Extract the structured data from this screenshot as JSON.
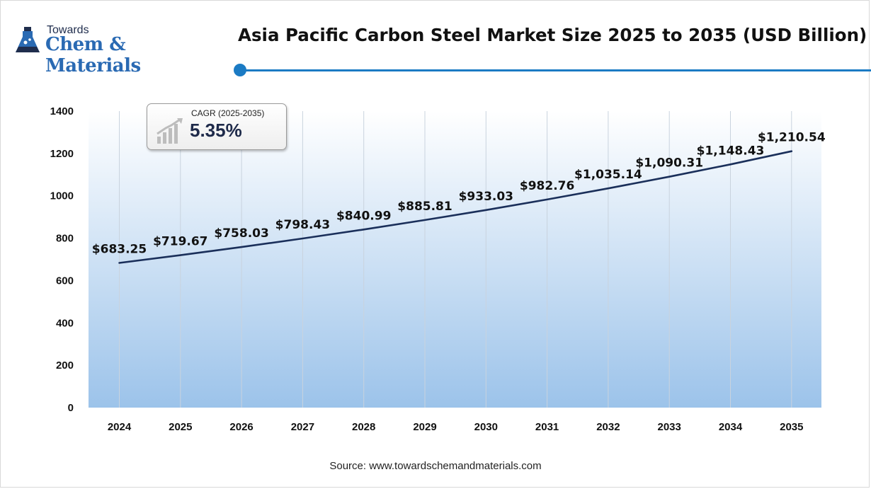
{
  "logo": {
    "line1": "Towards",
    "line2": "Chem & Materials"
  },
  "title": "Asia Pacific Carbon Steel Market Size 2025 to 2035 (USD Billion)",
  "cagr": {
    "label": "CAGR (2025-2035)",
    "value": "5.35%"
  },
  "source": "Source: www.towardschemandmaterials.com",
  "colors": {
    "line": "#1a2f5a",
    "accent": "#1b7bc4",
    "area_top": "#ffffff",
    "area_bottom": "#9cc3ea"
  },
  "chart_data": {
    "type": "line",
    "categories": [
      "2024",
      "2025",
      "2026",
      "2027",
      "2028",
      "2029",
      "2030",
      "2031",
      "2032",
      "2033",
      "2034",
      "2035"
    ],
    "values": [
      683.25,
      719.67,
      758.03,
      798.43,
      840.99,
      885.81,
      933.03,
      982.76,
      1035.14,
      1090.31,
      1148.43,
      1210.54
    ],
    "data_labels": [
      "$683.25",
      "$719.67",
      "$758.03",
      "$798.43",
      "$840.99",
      "$885.81",
      "$933.03",
      "$982.76",
      "$1,035.14",
      "$1,090.31",
      "$1,148.43",
      "$1,210.54"
    ],
    "yticks": [
      "0",
      "200",
      "400",
      "600",
      "800",
      "1000",
      "1200",
      "1400"
    ],
    "ylim": [
      0,
      1400
    ],
    "grid": "vertical",
    "legend": "none"
  }
}
